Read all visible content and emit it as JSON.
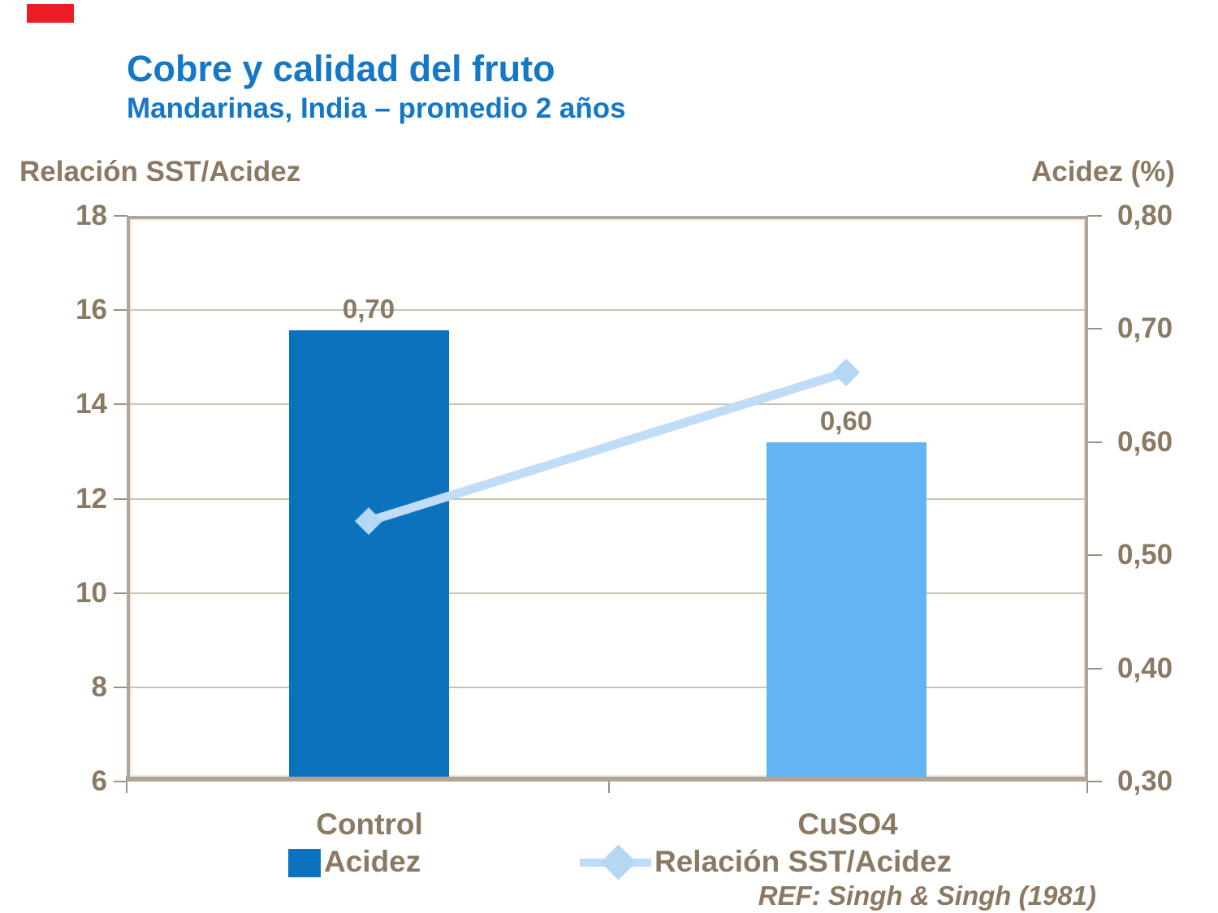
{
  "decoration": {
    "corner_mark_color": "#EC1C24"
  },
  "header": {
    "title": "Cobre y calidad del fruto",
    "subtitle": "Mandarinas, India – promedio 2 años",
    "title_color": "#1478C8"
  },
  "footer": {
    "reference": "REF: Singh & Singh (1981)"
  },
  "chart_data": {
    "type": "bar",
    "categories": [
      "Control",
      "CuSO4"
    ],
    "series": [
      {
        "name": "Acidez",
        "type": "bar",
        "axis": "right",
        "values": [
          0.7,
          0.6
        ],
        "labels": [
          "0,70",
          "0,60"
        ],
        "colors": [
          "#0C72BE",
          "#62B5F2"
        ]
      },
      {
        "name": "Relación SST/Acidez",
        "type": "line",
        "axis": "left",
        "values": [
          11.5,
          14.7
        ],
        "color": "#C0DCF7",
        "marker": "diamond",
        "marker_color": "#B4D7F4"
      }
    ],
    "left_axis": {
      "title": "Relación SST/Acidez",
      "range": [
        6,
        18
      ],
      "ticks": [
        "18",
        "16",
        "14",
        "12",
        "10",
        "8",
        "6"
      ]
    },
    "right_axis": {
      "title": "Acidez (%)",
      "range": [
        0.3,
        0.8
      ],
      "ticks": [
        "0,80",
        "0,70",
        "0,60",
        "0,50",
        "0,40",
        "0,30"
      ]
    },
    "legend": {
      "position": "bottom",
      "entries": [
        "Acidez",
        "Relación SST/Acidez"
      ]
    },
    "grid": true,
    "text_color": "#8A7963"
  }
}
